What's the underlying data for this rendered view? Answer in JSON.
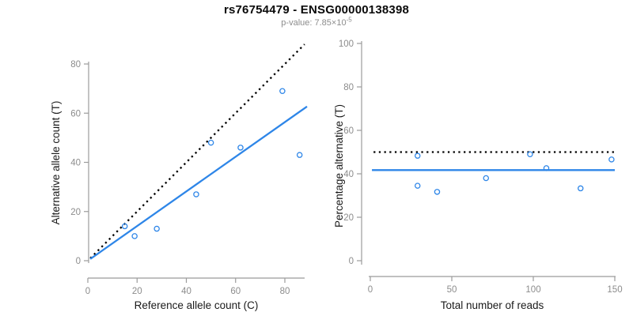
{
  "header": {
    "title": "rs76754479 - ENSG00000138398",
    "p_value_text": "p-value: 7.85×10",
    "p_value_exponent": "-5"
  },
  "colors": {
    "accent_blue": "#2E86E8",
    "dotted_black": "#000000",
    "axis_gray": "#9b9b9b",
    "tick_label_gray": "#8c8c8c",
    "axis_label_color": "#1a1a1a"
  },
  "chart_data": [
    {
      "type": "scatter",
      "title": "",
      "xlabel": "Reference allele count (C)",
      "ylabel": "Alternative allele count (T)",
      "xlim": [
        0,
        88
      ],
      "ylim": [
        0,
        88
      ],
      "x_ticks": [
        0,
        20,
        40,
        60,
        80
      ],
      "y_ticks": [
        0,
        20,
        40,
        60,
        80
      ],
      "grid": false,
      "point_style": {
        "shape": "open-circle",
        "color": "#2E86E8"
      },
      "points": [
        [
          15,
          14
        ],
        [
          19,
          10
        ],
        [
          28,
          13
        ],
        [
          44,
          27
        ],
        [
          50,
          48
        ],
        [
          62,
          46
        ],
        [
          79,
          69
        ],
        [
          86,
          43
        ]
      ],
      "lines": [
        {
          "name": "identity-line",
          "style": "dotted",
          "color": "#000000",
          "from": [
            1,
            1
          ],
          "to": [
            88,
            88
          ]
        },
        {
          "name": "fit-line",
          "style": "solid",
          "color": "#2E86E8",
          "from": [
            1,
            0.7
          ],
          "to": [
            89,
            62.7
          ]
        }
      ]
    },
    {
      "type": "scatter",
      "title": "",
      "xlabel": "Total number of reads",
      "ylabel": "Percentage alternative (T)",
      "xlim": [
        0,
        152
      ],
      "ylim": [
        0,
        100
      ],
      "x_ticks": [
        0,
        50,
        100,
        150
      ],
      "y_ticks": [
        0,
        20,
        40,
        60,
        80,
        100
      ],
      "grid": false,
      "point_style": {
        "shape": "open-circle",
        "color": "#2E86E8"
      },
      "points": [
        [
          29,
          48.3
        ],
        [
          29,
          34.5
        ],
        [
          41,
          31.7
        ],
        [
          71,
          38.0
        ],
        [
          98,
          49.0
        ],
        [
          108,
          42.6
        ],
        [
          148,
          46.6
        ],
        [
          129,
          33.3
        ]
      ],
      "lines": [
        {
          "name": "expected-50pct-line",
          "style": "dotted",
          "color": "#000000",
          "from": [
            2,
            50
          ],
          "to": [
            150,
            50
          ]
        },
        {
          "name": "mean-percentage-line",
          "style": "solid",
          "color": "#2E86E8",
          "from": [
            1,
            41.7
          ],
          "to": [
            150,
            41.7
          ]
        }
      ]
    }
  ]
}
